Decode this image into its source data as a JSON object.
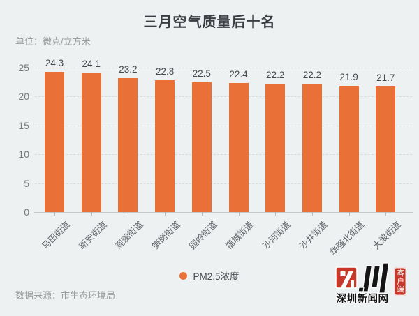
{
  "colors": {
    "background": "#EEF1F2",
    "accent": "#E97138",
    "title_text": "#3A3E43",
    "muted_text": "#9A9C9D",
    "axis_text": "#75787C",
    "value_text": "#46494E",
    "category_text": "#5F6368",
    "brand_red": "#C5382A",
    "brand_black": "#141414"
  },
  "header": {
    "title": "三月空气质量后十名",
    "unit_label": "单位：微克/立方米"
  },
  "chart_data": {
    "type": "bar",
    "title": "三月空气质量后十名",
    "unit": "微克/立方米",
    "categories": [
      "马田街道",
      "新安街道",
      "观澜街道",
      "笋岗街道",
      "园岭街道",
      "福城街道",
      "沙河街道",
      "沙井街道",
      "华强北街道",
      "大浪街道"
    ],
    "series": [
      {
        "name": "PM2.5浓度",
        "color": "#E97138",
        "values": [
          24.3,
          24.1,
          23.2,
          22.8,
          22.5,
          22.4,
          22.2,
          22.2,
          21.9,
          21.7
        ]
      }
    ],
    "ylim": [
      0,
      25
    ],
    "yticks": [
      0,
      5,
      10,
      15,
      20,
      25
    ],
    "grid": "horizontal-dashed",
    "legend_position": "bottom-center",
    "value_labels": true,
    "category_label_rotation": 45
  },
  "legend": {
    "items": [
      {
        "label": "PM2.5浓度",
        "color": "#E97138"
      }
    ]
  },
  "footer": {
    "source": "数据来源：市生态环境局"
  },
  "brand": {
    "site_name": "深圳新闻网",
    "seal_label": "客户端"
  }
}
